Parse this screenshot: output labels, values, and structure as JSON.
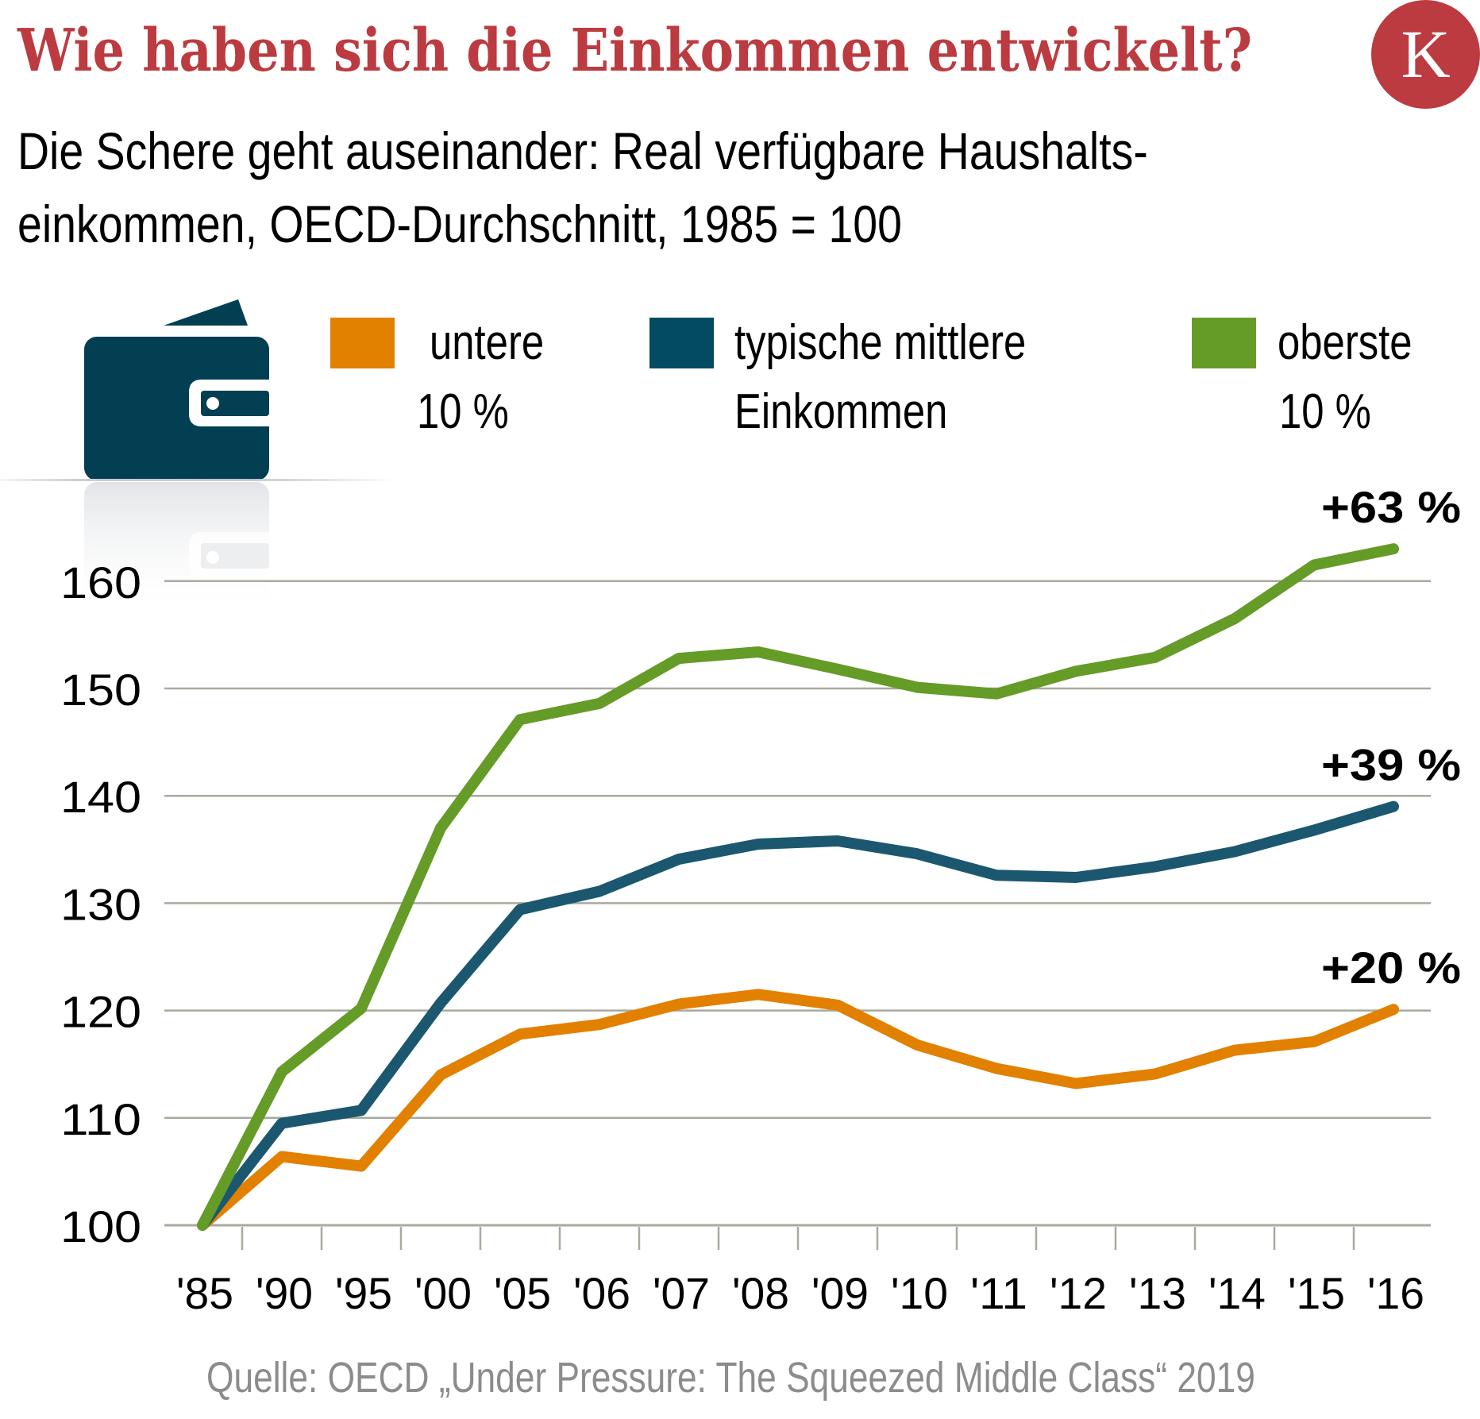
{
  "header": {
    "title": "Wie haben sich die Einkommen entwickelt?",
    "subtitle_line1": "Die Schere geht auseinander: Real verfügbare Haushalts-",
    "subtitle_line2": "einkommen, OECD-Durchschnitt, 1985 = 100",
    "logo_letter": "K",
    "brand_color": "#bb3b40"
  },
  "icon": "wallet-icon",
  "legend": [
    {
      "line1": "untere",
      "line2": "10 %",
      "color": "#e28000"
    },
    {
      "line1": "typische mittlere",
      "line2": "Einkommen",
      "color": "#034b63"
    },
    {
      "line1": "oberste",
      "line2": "10 %",
      "color": "#659b27"
    }
  ],
  "source": "Quelle: OECD „Under Pressure: The Squeezed Middle Class“ 2019",
  "chart_data": {
    "type": "line",
    "title": "Wie haben sich die Einkommen entwickelt?",
    "subtitle": "Real verfügbare Haushaltseinkommen, OECD-Durchschnitt, 1985 = 100",
    "xlabel": "",
    "ylabel": "",
    "x": [
      "'85",
      "'90",
      "'95",
      "'00",
      "'05",
      "'06",
      "'07",
      "'08",
      "'09",
      "'10",
      "'11",
      "'12",
      "'13",
      "'14",
      "'15",
      "'16"
    ],
    "ylim": [
      100,
      160
    ],
    "yticks": [
      100,
      110,
      120,
      130,
      140,
      150,
      160
    ],
    "grid": true,
    "legend_position": "top",
    "series": [
      {
        "name": "untere 10 %",
        "color": "#e28000",
        "end_label": "+20 %",
        "values": [
          100,
          106.4,
          105.5,
          114.0,
          117.8,
          118.7,
          120.6,
          121.5,
          120.5,
          116.8,
          114.6,
          113.2,
          114.1,
          116.3,
          117.1,
          120.1
        ]
      },
      {
        "name": "typische mittlere Einkommen",
        "color": "#1b5870",
        "end_label": "+39 %",
        "values": [
          100,
          109.5,
          110.7,
          120.7,
          129.4,
          131.1,
          134.1,
          135.5,
          135.8,
          134.6,
          132.6,
          132.4,
          133.4,
          134.8,
          136.8,
          139.0
        ]
      },
      {
        "name": "oberste 10 %",
        "color": "#659b27",
        "end_label": "+63 %",
        "values": [
          100,
          114.3,
          120.2,
          137.0,
          147.1,
          148.6,
          152.8,
          153.4,
          151.8,
          150.1,
          149.5,
          151.6,
          152.9,
          156.5,
          161.5,
          163.0
        ]
      }
    ]
  }
}
